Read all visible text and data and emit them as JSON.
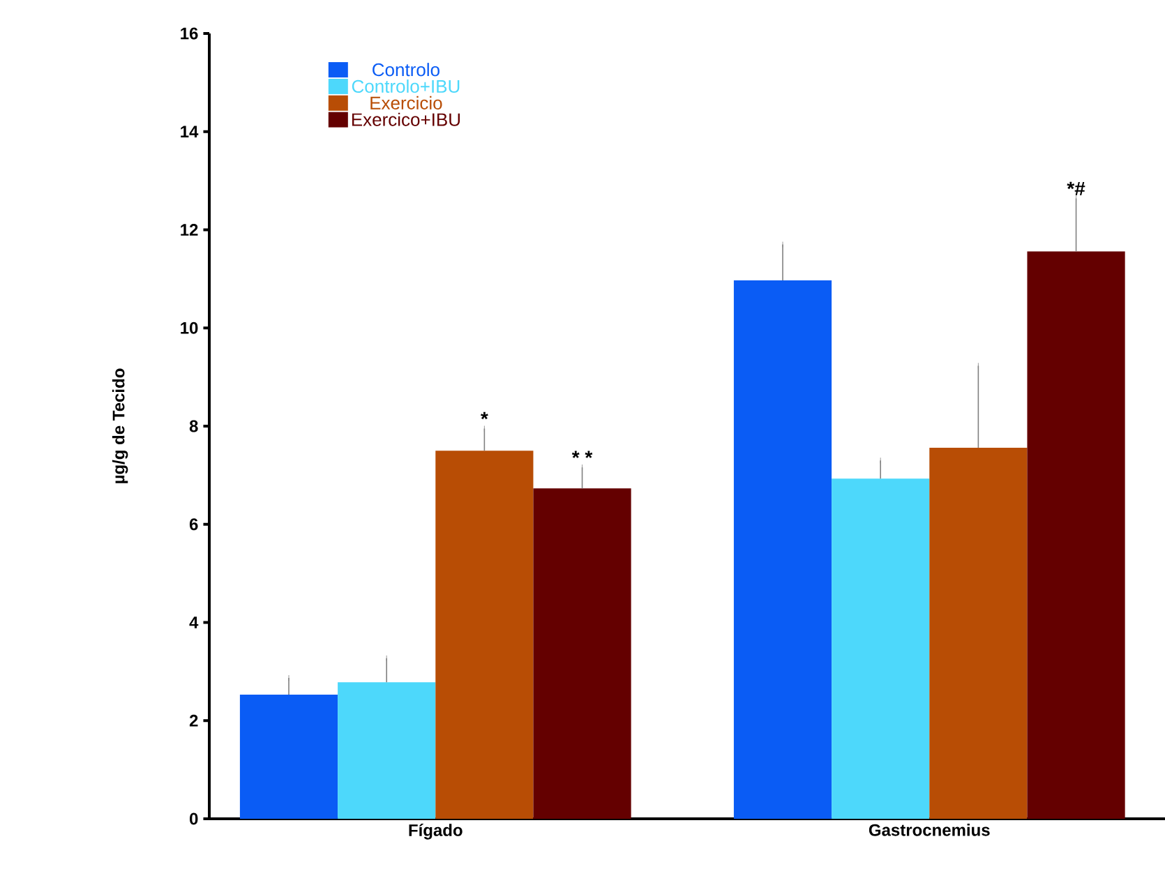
{
  "chart_data": {
    "type": "bar",
    "ylabel": "µg/g de Tecido",
    "categories": [
      "Fígado",
      "Gastrocnemius"
    ],
    "series": [
      {
        "name": "Controlo",
        "color": "#0a5cf5",
        "values": [
          2.53,
          10.97
        ],
        "errors": [
          0.34,
          0.73
        ]
      },
      {
        "name": "Controlo+IBU",
        "color": "#4dd8fb",
        "values": [
          2.78,
          6.93
        ],
        "errors": [
          0.49,
          0.37
        ]
      },
      {
        "name": "Exercicio",
        "color": "#b84d05",
        "values": [
          7.5,
          7.56
        ],
        "errors": [
          0.45,
          1.67
        ]
      },
      {
        "name": "Exercico+IBU",
        "color": "#640000",
        "values": [
          6.73,
          11.56
        ],
        "errors": [
          0.43,
          1.08
        ]
      }
    ],
    "annotations": [
      "*",
      "* *",
      "*#"
    ],
    "ylim": [
      0,
      16
    ],
    "yticks": [
      0,
      2,
      4,
      6,
      8,
      10,
      12,
      14,
      16
    ],
    "legend": "top left",
    "grid": false
  }
}
